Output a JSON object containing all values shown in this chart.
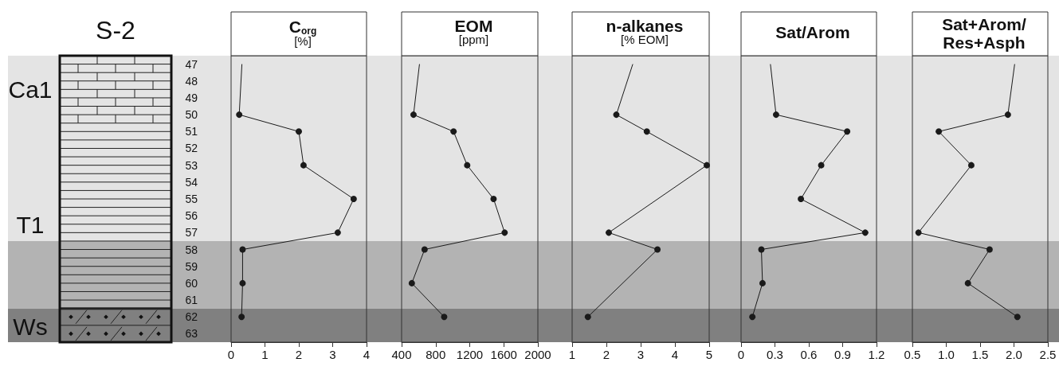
{
  "chart_data": [
    {
      "type": "line",
      "title": "C$_{org}$",
      "subtitle": "[%]",
      "annotations": [
        "S-2",
        "Ca1",
        "T1",
        "Ws"
      ],
      "orientation": "horizontal",
      "categories": [
        "47",
        "48",
        "49",
        "50",
        "51",
        "52",
        "53",
        "54",
        "55",
        "56",
        "57",
        "58",
        "59",
        "60",
        "61",
        "62",
        "63"
      ],
      "xlim": [
        0,
        4
      ],
      "xticks": [
        0,
        1,
        2,
        3,
        4
      ],
      "bands": [
        {
          "axis": "y",
          "from": "47",
          "to": "57",
          "color": "#e4e4e4"
        },
        {
          "axis": "y",
          "from": "58",
          "to": "61",
          "color": "#b3b3b3"
        },
        {
          "axis": "y",
          "from": "62",
          "to": "63",
          "color": "#808080"
        }
      ],
      "series": [
        {
          "color": "#1a1a1a",
          "marker": "none",
          "values": [
            0.32,
            null,
            null,
            0.24,
            null,
            null,
            null,
            null,
            null,
            null,
            null,
            null,
            null,
            null,
            null,
            null,
            null
          ]
        },
        {
          "color": "#1a1a1a",
          "marker": "circle",
          "values": [
            null,
            null,
            null,
            0.24,
            2.0,
            null,
            2.14,
            null,
            3.62,
            null,
            3.15,
            0.34,
            null,
            0.34,
            null,
            0.31,
            null
          ]
        }
      ]
    },
    {
      "type": "line",
      "title": "EOM",
      "subtitle": "[ppm]",
      "orientation": "horizontal",
      "tick_labels": "x",
      "categories": [
        "47",
        "48",
        "49",
        "50",
        "51",
        "52",
        "53",
        "54",
        "55",
        "56",
        "57",
        "58",
        "59",
        "60",
        "61",
        "62",
        "63"
      ],
      "xlim": [
        400,
        2000
      ],
      "xticks": [
        400,
        800,
        1200,
        1600,
        2000
      ],
      "bands": [
        {
          "axis": "y",
          "from": "47",
          "to": "57",
          "color": "#e4e4e4"
        },
        {
          "axis": "y",
          "from": "58",
          "to": "61",
          "color": "#b3b3b3"
        },
        {
          "axis": "y",
          "from": "62",
          "to": "63",
          "color": "#808080"
        }
      ],
      "series": [
        {
          "color": "#1a1a1a",
          "marker": "none",
          "values": [
            610,
            null,
            null,
            540,
            null,
            null,
            null,
            null,
            null,
            null,
            null,
            null,
            null,
            null,
            null,
            null,
            null
          ]
        },
        {
          "color": "#1a1a1a",
          "marker": "circle",
          "values": [
            null,
            null,
            null,
            540,
            1010,
            null,
            1170,
            null,
            1480,
            null,
            1610,
            670,
            null,
            520,
            null,
            900,
            null
          ]
        }
      ]
    },
    {
      "type": "line",
      "title": "n-alkanes",
      "subtitle": "[% EOM]",
      "orientation": "horizontal",
      "tick_labels": "x",
      "categories": [
        "47",
        "48",
        "49",
        "50",
        "51",
        "52",
        "53",
        "54",
        "55",
        "56",
        "57",
        "58",
        "59",
        "60",
        "61",
        "62",
        "63"
      ],
      "xlim": [
        1,
        5
      ],
      "xticks": [
        1,
        2,
        3,
        4,
        5
      ],
      "bands": [
        {
          "axis": "y",
          "from": "47",
          "to": "57",
          "color": "#e4e4e4"
        },
        {
          "axis": "y",
          "from": "58",
          "to": "61",
          "color": "#b3b3b3"
        },
        {
          "axis": "y",
          "from": "62",
          "to": "63",
          "color": "#808080"
        }
      ],
      "series": [
        {
          "color": "#1a1a1a",
          "marker": "none",
          "values": [
            2.77,
            null,
            null,
            2.29,
            null,
            null,
            null,
            null,
            null,
            null,
            null,
            null,
            null,
            null,
            null,
            null,
            null
          ]
        },
        {
          "color": "#1a1a1a",
          "marker": "circle",
          "values": [
            null,
            null,
            null,
            2.29,
            3.18,
            null,
            4.93,
            null,
            null,
            null,
            2.07,
            3.49,
            null,
            null,
            null,
            1.46,
            null
          ]
        }
      ]
    },
    {
      "type": "line",
      "title": "Sat/Arom",
      "orientation": "horizontal",
      "tick_labels": "x",
      "categories": [
        "47",
        "48",
        "49",
        "50",
        "51",
        "52",
        "53",
        "54",
        "55",
        "56",
        "57",
        "58",
        "59",
        "60",
        "61",
        "62",
        "63"
      ],
      "xlim": [
        0,
        1.2
      ],
      "xticks": [
        0,
        0.3,
        0.6,
        0.9,
        1.2
      ],
      "bands": [
        {
          "axis": "y",
          "from": "47",
          "to": "57",
          "color": "#e4e4e4"
        },
        {
          "axis": "y",
          "from": "58",
          "to": "61",
          "color": "#b3b3b3"
        },
        {
          "axis": "y",
          "from": "62",
          "to": "63",
          "color": "#808080"
        }
      ],
      "series": [
        {
          "color": "#1a1a1a",
          "marker": "none",
          "values": [
            0.26,
            null,
            null,
            0.31,
            null,
            null,
            null,
            null,
            null,
            null,
            null,
            null,
            null,
            null,
            null,
            null,
            null
          ]
        },
        {
          "color": "#1a1a1a",
          "marker": "circle",
          "values": [
            null,
            null,
            null,
            0.31,
            0.94,
            null,
            0.71,
            null,
            0.53,
            null,
            1.1,
            0.18,
            null,
            0.19,
            null,
            0.1,
            null
          ]
        }
      ]
    },
    {
      "type": "line",
      "title": "Sat+Arom/\nRes+Asph",
      "orientation": "horizontal",
      "tick_labels": "x",
      "categories": [
        "47",
        "48",
        "49",
        "50",
        "51",
        "52",
        "53",
        "54",
        "55",
        "56",
        "57",
        "58",
        "59",
        "60",
        "61",
        "62",
        "63"
      ],
      "xlim": [
        0.5,
        2.5
      ],
      "xticks": [
        0.5,
        {
          "value": 1,
          "label": "1.0"
        },
        1.5,
        {
          "value": 2,
          "label": "2.0"
        },
        2.5
      ],
      "bands": [
        {
          "axis": "y",
          "from": "47",
          "to": "57",
          "color": "#e4e4e4"
        },
        {
          "axis": "y",
          "from": "58",
          "to": "61",
          "color": "#b3b3b3"
        },
        {
          "axis": "y",
          "from": "62",
          "to": "63",
          "color": "#808080"
        }
      ],
      "series": [
        {
          "color": "#1a1a1a",
          "marker": "none",
          "values": [
            2.01,
            null,
            null,
            1.91,
            null,
            null,
            null,
            null,
            null,
            null,
            null,
            null,
            null,
            null,
            null,
            null,
            null
          ]
        },
        {
          "color": "#1a1a1a",
          "marker": "circle",
          "values": [
            null,
            null,
            null,
            1.91,
            0.89,
            null,
            1.37,
            null,
            null,
            null,
            0.59,
            1.64,
            null,
            1.32,
            null,
            2.05,
            null
          ]
        }
      ]
    }
  ]
}
